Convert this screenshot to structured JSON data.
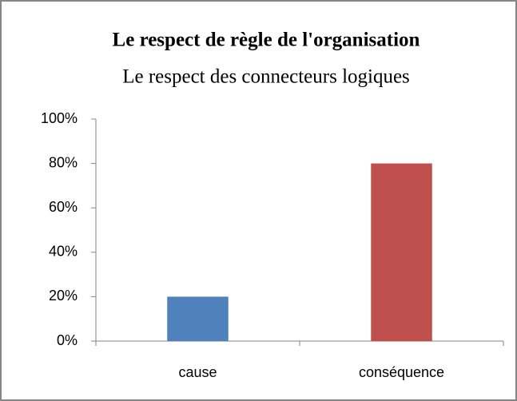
{
  "chart_data": {
    "type": "bar",
    "title": "Le respect de règle de l'organisation",
    "subtitle": "Le respect des connecteurs logiques",
    "categories": [
      "cause",
      "conséquence"
    ],
    "values": [
      20,
      80
    ],
    "colors": [
      "#4f81bd",
      "#c0504d"
    ],
    "ylim": [
      0,
      100
    ],
    "yticks": [
      {
        "value": 0,
        "label": "0%"
      },
      {
        "value": 20,
        "label": "20%"
      },
      {
        "value": 40,
        "label": "40%"
      },
      {
        "value": 60,
        "label": "60%"
      },
      {
        "value": 80,
        "label": "80%"
      },
      {
        "value": 100,
        "label": "100%"
      }
    ],
    "grid": false
  }
}
